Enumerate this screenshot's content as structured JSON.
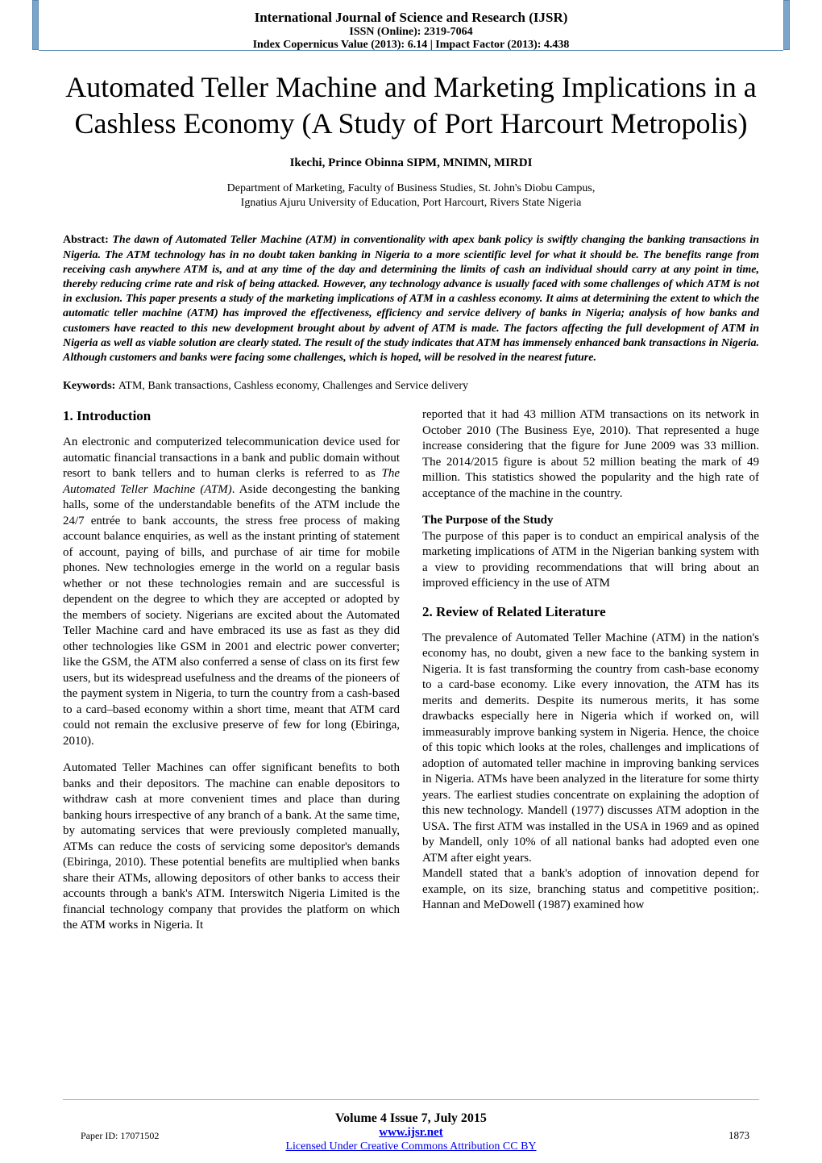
{
  "header": {
    "journal": "International Journal of Science and Research (IJSR)",
    "issn": "ISSN (Online): 2319-7064",
    "index_line": "Index Copernicus Value (2013): 6.14 | Impact Factor (2013): 4.438"
  },
  "title": "Automated Teller Machine and Marketing Implications in a Cashless Economy (A Study of Port Harcourt Metropolis)",
  "author": "Ikechi, Prince Obinna SIPM, MNIMN, MIRDI",
  "affiliation_line1": "Department of Marketing, Faculty of Business Studies, St. John's Diobu Campus,",
  "affiliation_line2": "Ignatius Ajuru University of Education, Port Harcourt, Rivers State Nigeria",
  "abstract_label": "Abstract: ",
  "abstract_text": "The dawn of Automated Teller Machine (ATM) in conventionality with apex bank policy is swiftly changing the banking transactions in Nigeria. The ATM technology has in no doubt taken banking in Nigeria to a more scientific level for what it should be. The benefits range from receiving cash anywhere ATM is, and at any time of the day and determining the limits of cash an individual should carry at any point in time, thereby reducing crime rate and risk of being attacked. However, any technology advance is usually faced with some challenges of which ATM is not in exclusion. This paper presents a study of the marketing implications of ATM in a cashless economy. It aims at determining the extent to which the automatic teller machine (ATM) has improved the effectiveness, efficiency and service delivery of banks in Nigeria; analysis of how banks and customers have reacted to this new development brought about by advent of ATM is made. The factors affecting the full development of ATM in Nigeria as well as viable solution are clearly stated. The result of the study indicates that ATM has immensely enhanced bank transactions in Nigeria. Although customers and banks were facing some challenges, which is hoped, will be resolved in the nearest future.",
  "keywords_label": "Keywords: ",
  "keywords_text": "ATM, Bank transactions, Cashless economy, Challenges and Service delivery",
  "sections": {
    "intro_heading": "1. Introduction",
    "intro_p1a": "An electronic and computerized telecommunication device used for automatic financial transactions in a bank and public domain without resort to bank tellers and to human clerks is referred to as ",
    "intro_p1_em": "The Automated Teller Machine (ATM)",
    "intro_p1b": ". Aside decongesting the banking halls, some of the understandable benefits of the ATM include the 24/7 entrée to bank accounts, the stress free process of making account balance enquiries, as well as the instant printing of statement of account, paying of bills, and purchase of air time for mobile phones. New technologies emerge in the world on a regular basis whether or not these technologies remain and are successful is dependent on the degree to which they are accepted or adopted by the members of society. Nigerians are excited about the Automated Teller Machine card and have embraced its use as fast as they did other technologies like GSM in 2001 and electric power converter; like the GSM, the ATM also conferred a sense of class on its first few users, but its widespread usefulness and the dreams of the pioneers of the payment system in Nigeria, to turn the country from a cash-based to a card–based economy within a short time, meant that ATM card could not remain the exclusive preserve of few for long (Ebiringa, 2010).",
    "intro_p2": "Automated Teller Machines can offer significant benefits to both banks and their depositors. The machine can enable depositors to withdraw cash at more convenient times and place than during banking hours irrespective of any branch of a bank. At the same time, by automating services that were previously completed manually, ATMs can reduce the costs of servicing some depositor's demands (Ebiringa, 2010). These potential benefits are multiplied when banks share their ATMs, allowing depositors of other banks to access their accounts through a bank's ATM. Interswitch Nigeria Limited is the financial technology company that provides the platform on which the ATM works in Nigeria. It ",
    "intro_p2_cont": "reported that it had 43 million ATM transactions on its network in October 2010 (The Business Eye, 2010). That represented a huge increase considering that the figure for June 2009 was 33 million. The 2014/2015 figure is about 52 million beating the mark of 49 million. This statistics showed the popularity and the high rate of acceptance of the machine in the country.",
    "purpose_heading": "The Purpose of the Study",
    "purpose_p": "The purpose of this paper is to conduct an empirical analysis of the marketing implications of ATM in the Nigerian banking system with a view to providing recommendations that will bring about an improved efficiency in the use of ATM",
    "review_heading": "2. Review of Related Literature",
    "review_p1": "The prevalence of Automated Teller Machine (ATM) in the nation's economy has, no doubt, given a new face to the banking system in Nigeria. It is fast transforming the country from cash-base economy to a card-base economy. Like every innovation, the ATM has its merits and demerits. Despite its numerous merits, it has some drawbacks especially here in Nigeria which if worked on, will immeasurably improve banking system in Nigeria. Hence, the choice of this topic which looks at the roles, challenges and implications of adoption of automated teller machine in improving banking services in Nigeria. ATMs have been analyzed in the literature for some thirty years. The earliest studies concentrate on explaining the adoption of this new technology. Mandell (1977) discusses ATM adoption in the USA. The first ATM was installed in the USA in 1969 and as opined by Mandell, only 10% of all national banks had adopted even one ATM after eight years.",
    "review_p2": "Mandell stated that a bank's adoption of innovation depend for example, on its size, branching status and competitive position;. Hannan and MeDowell (1987) examined how "
  },
  "footer": {
    "volume": "Volume 4 Issue 7, July 2015",
    "url": "www.ijsr.net",
    "license": "Licensed Under Creative Commons Attribution CC BY",
    "paper_id": "Paper ID: 17071502",
    "page_number": "1873"
  },
  "colors": {
    "bar": "#7ba5c9",
    "bar_border": "#5a8ab0",
    "link": "#0000ee",
    "background": "#ffffff",
    "rule": "#aaaaaa"
  }
}
